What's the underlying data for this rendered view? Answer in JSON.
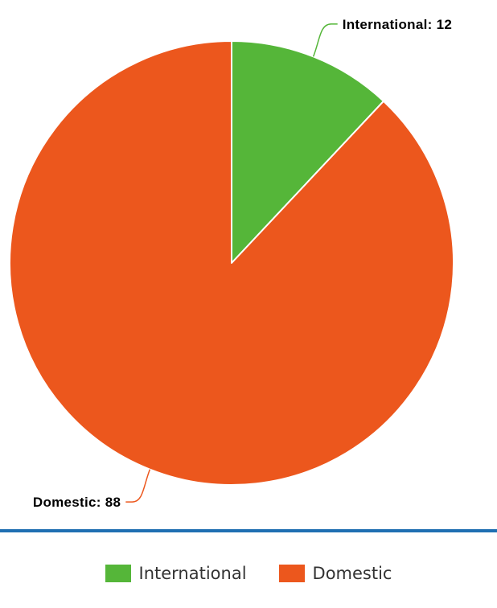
{
  "chart_data": {
    "type": "pie",
    "categories": [
      "International",
      "Domestic"
    ],
    "values": [
      12,
      88
    ],
    "colors": [
      "#55b639",
      "#ec571d"
    ],
    "data_labels": [
      "International: 12",
      "Domestic: 88"
    ],
    "legend_position": "bottom",
    "start_angle": "top",
    "direction": "clockwise"
  },
  "legend": {
    "items": [
      {
        "label": "International",
        "color": "#55b639"
      },
      {
        "label": "Domestic",
        "color": "#ec571d"
      }
    ]
  },
  "divider_color": "#1f6fb2"
}
